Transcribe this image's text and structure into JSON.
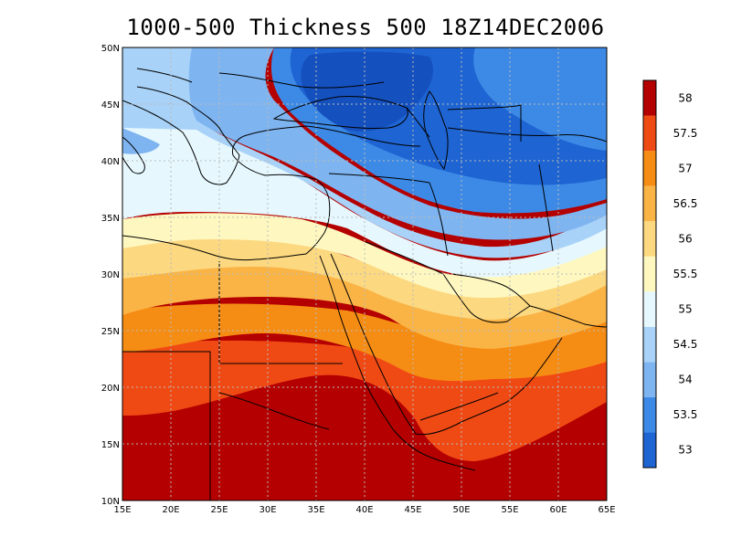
{
  "title": "1000-500 Thickness 500 18Z14DEC2006",
  "map": {
    "lon_range": [
      15,
      65
    ],
    "lat_range": [
      10,
      50
    ],
    "lon_ticks": [
      "15E",
      "20E",
      "25E",
      "30E",
      "35E",
      "40E",
      "45E",
      "50E",
      "55E",
      "60E",
      "65E"
    ],
    "lat_ticks": [
      "10N",
      "15N",
      "20N",
      "25N",
      "30N",
      "35N",
      "40N",
      "45N",
      "50N"
    ],
    "grid": true
  },
  "colorbar": {
    "levels": [
      {
        "label": "53",
        "color": "#1e64d2"
      },
      {
        "label": "53.5",
        "color": "#3c8ae6"
      },
      {
        "label": "54",
        "color": "#7eb4f0"
      },
      {
        "label": "54.5",
        "color": "#a8d2f8"
      },
      {
        "label": "55",
        "color": "#e6f8fe"
      },
      {
        "label": "55.5",
        "color": "#fef8c0"
      },
      {
        "label": "56",
        "color": "#fcd880"
      },
      {
        "label": "56.5",
        "color": "#fab446"
      },
      {
        "label": "57",
        "color": "#f58c14"
      },
      {
        "label": "57.5",
        "color": "#f04a14"
      },
      {
        "label": "58",
        "color": "#b40000"
      }
    ]
  },
  "colors": {
    "deep_blue": "#1450be",
    "dark_red": "#b40000"
  }
}
